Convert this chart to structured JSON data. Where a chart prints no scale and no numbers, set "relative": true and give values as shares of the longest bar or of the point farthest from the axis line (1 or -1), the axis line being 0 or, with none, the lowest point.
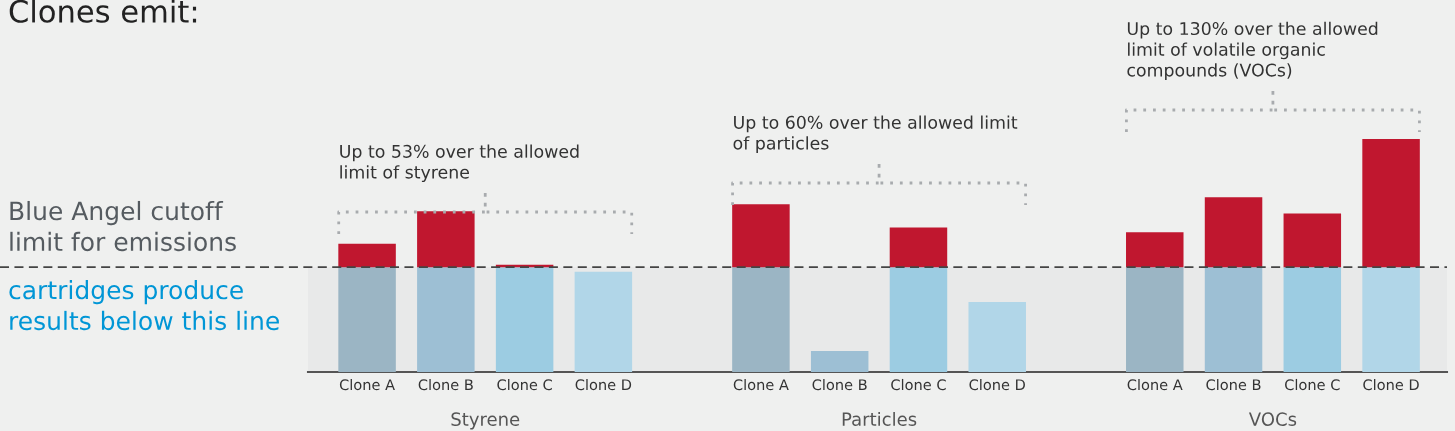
{
  "chart_data": {
    "type": "bar",
    "title": "Clones emit:",
    "relative": true,
    "stacked": true,
    "grid": false,
    "tick_labels": "x",
    "categories": [
      "Clone A",
      "Clone B",
      "Clone C",
      "Clone D",
      null,
      "Clone A",
      "Clone B",
      "Clone C",
      "Clone D",
      null,
      "Clone A",
      "Clone B",
      "Clone C",
      "Clone D"
    ],
    "series": [
      {
        "colors": [
          "#9bb5c4",
          "#9dbfd4",
          "#9ccce2",
          "#b1d6e8",
          null,
          "#9bb5c4",
          "#9dbfd4",
          "#9ccce2",
          "#b1d6e8",
          null,
          "#9bb5c4",
          "#9dbfd4",
          "#9ccce2",
          "#b1d6e8"
        ],
        "values": [
          0.45,
          0.45,
          0.45,
          0.43,
          null,
          0.45,
          0.09,
          0.45,
          0.3,
          null,
          0.45,
          0.45,
          0.45,
          0.45
        ]
      },
      {
        "color": "#c0172f",
        "values": [
          0.1,
          0.24,
          0.01,
          0,
          null,
          0.27,
          0,
          0.17,
          0,
          null,
          0.15,
          0.3,
          0.23,
          0.55
        ]
      }
    ],
    "ref_lines": [
      {
        "axis": "y",
        "value": 0.45,
        "label": "Blue Angel cutoff\nlimit for emissions",
        "color": "#444444",
        "line_style": "dashed"
      }
    ],
    "bands": [
      {
        "axis": "y",
        "from": 0,
        "to": 0.45,
        "label": "cartridges produce\nresults below this line",
        "color": "#e8e9e9"
      }
    ],
    "annotations": [
      "Up to 53% over the allowed\nlimit of styrene",
      "Up to 60% over the allowed limit\nof particles",
      "Up to 130% over the allowed\nlimit of volatile organic\ncompounds (VOCs)",
      "Styrene",
      "Particles",
      "VOCs"
    ]
  }
}
